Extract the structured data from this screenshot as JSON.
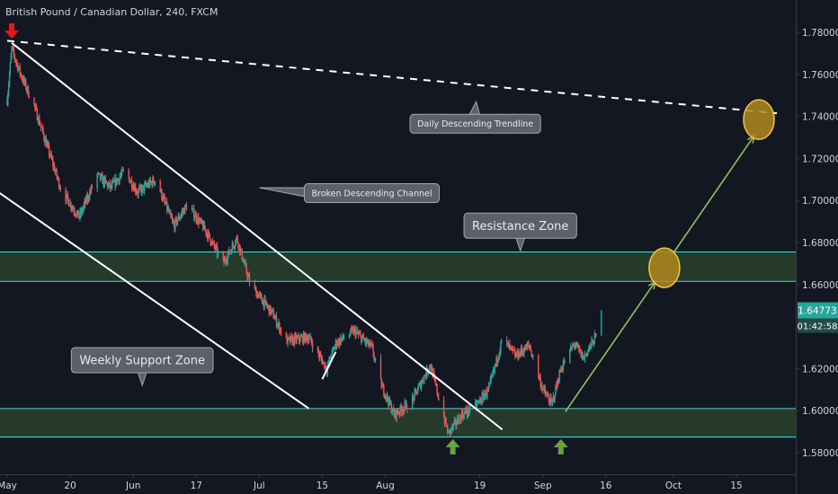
{
  "header": {
    "title": "British Pound / Canadian Dollar, 240, FXCM"
  },
  "price_tag": {
    "value": "1.64773",
    "countdown": "01:42:58"
  },
  "chart_data": {
    "type": "candlestick",
    "y_axis": {
      "ylim": [
        1.5705,
        1.795
      ],
      "ticks": [
        "1.78000",
        "1.76000",
        "1.74000",
        "1.72000",
        "1.70000",
        "1.68000",
        "1.66000",
        "1.64000",
        "1.62000",
        "1.60000",
        "1.58000"
      ],
      "position": "right"
    },
    "x_axis": {
      "ticks": [
        "May",
        "20",
        "Jun",
        "17",
        "Jul",
        "15",
        "Aug",
        "19",
        "Sep",
        "16",
        "Oct",
        "15"
      ],
      "tick_dates": [
        "2019-05-06",
        "2019-05-20",
        "2019-06-03",
        "2019-06-17",
        "2019-07-01",
        "2019-07-15",
        "2019-07-29",
        "2019-08-19",
        "2019-09-02",
        "2019-09-16",
        "2019-10-01",
        "2019-10-15"
      ]
    },
    "price_path": [
      [
        "2019-05-06",
        1.748
      ],
      [
        "2019-05-07",
        1.772
      ],
      [
        "2019-05-09",
        1.76
      ],
      [
        "2019-05-12",
        1.745
      ],
      [
        "2019-05-15",
        1.725
      ],
      [
        "2019-05-18",
        1.705
      ],
      [
        "2019-05-22",
        1.692
      ],
      [
        "2019-05-26",
        1.712
      ],
      [
        "2019-05-29",
        1.706
      ],
      [
        "2019-06-01",
        1.714
      ],
      [
        "2019-06-04",
        1.704
      ],
      [
        "2019-06-08",
        1.71
      ],
      [
        "2019-06-12",
        1.688
      ],
      [
        "2019-06-15",
        1.698
      ],
      [
        "2019-06-19",
        1.686
      ],
      [
        "2019-06-23",
        1.67
      ],
      [
        "2019-06-26",
        1.682
      ],
      [
        "2019-06-29",
        1.66
      ],
      [
        "2019-07-04",
        1.646
      ],
      [
        "2019-07-07",
        1.633
      ],
      [
        "2019-07-12",
        1.635
      ],
      [
        "2019-07-16",
        1.62
      ],
      [
        "2019-07-18",
        1.632
      ],
      [
        "2019-07-22",
        1.638
      ],
      [
        "2019-07-26",
        1.63
      ],
      [
        "2019-07-28",
        1.613
      ],
      [
        "2019-07-31",
        1.598
      ],
      [
        "2019-08-04",
        1.605
      ],
      [
        "2019-08-08",
        1.622
      ],
      [
        "2019-08-10",
        1.605
      ],
      [
        "2019-08-12",
        1.589
      ],
      [
        "2019-08-15",
        1.598
      ],
      [
        "2019-08-18",
        1.602
      ],
      [
        "2019-08-21",
        1.61
      ],
      [
        "2019-08-24",
        1.634
      ],
      [
        "2019-08-27",
        1.626
      ],
      [
        "2019-08-30",
        1.631
      ],
      [
        "2019-09-02",
        1.61
      ],
      [
        "2019-09-04",
        1.603
      ],
      [
        "2019-09-06",
        1.62
      ],
      [
        "2019-09-09",
        1.632
      ],
      [
        "2019-09-11",
        1.625
      ],
      [
        "2019-09-14",
        1.636
      ],
      [
        "2019-09-15",
        1.6477
      ]
    ],
    "zones": [
      {
        "name": "Resistance Zone",
        "low": 1.6615,
        "high": 1.6755
      },
      {
        "name": "Weekly Support Zone",
        "low": 1.5875,
        "high": 1.601
      }
    ],
    "lines": [
      {
        "name": "Daily Descending Trendline",
        "style": "dashed",
        "from": [
          "2019-05-06",
          1.776
        ],
        "to": [
          "2019-10-24",
          1.7415
        ]
      },
      {
        "name": "channel-upper",
        "style": "solid",
        "from": [
          "2019-05-07",
          1.775
        ],
        "to": [
          "2019-08-24",
          1.591
        ]
      },
      {
        "name": "channel-lower",
        "style": "solid",
        "from": [
          "2019-04-30",
          1.71
        ],
        "to": [
          "2019-07-12",
          1.601
        ]
      },
      {
        "name": "swing-mark",
        "style": "solid",
        "from": [
          "2019-07-15",
          1.615
        ],
        "to": [
          "2019-07-18",
          1.628
        ]
      }
    ],
    "arrows": [
      {
        "from": [
          "2019-09-07",
          1.5995
        ],
        "to": [
          "2019-09-27",
          1.6615
        ]
      },
      {
        "from": [
          "2019-10-01",
          1.675
        ],
        "to": [
          "2019-10-19",
          1.731
        ]
      }
    ],
    "targets": [
      {
        "date": "2019-09-29",
        "price": 1.668
      },
      {
        "date": "2019-10-20",
        "price": 1.7385
      }
    ],
    "markers": [
      {
        "type": "down",
        "color": "#e0191b",
        "date": "2019-05-07",
        "price": 1.78
      },
      {
        "type": "up",
        "color": "#67a53a",
        "date": "2019-08-13",
        "price": 1.583
      },
      {
        "type": "up",
        "color": "#67a53a",
        "date": "2019-09-06",
        "price": 1.583
      }
    ],
    "annotations": [
      {
        "text": "Daily Descending Trendline",
        "size": "small",
        "date": "2019-08-18",
        "price": 1.7365,
        "pointer": "up"
      },
      {
        "text": "Broken Descending Channel",
        "size": "small",
        "date": "2019-07-26",
        "price": 1.7035,
        "pointer": "left"
      },
      {
        "text": "Resistance Zone",
        "size": "large",
        "date": "2019-08-28",
        "price": 1.688,
        "pointer": "down"
      },
      {
        "text": "Weekly Support Zone",
        "size": "large",
        "date": "2019-06-05",
        "price": 1.624,
        "pointer": "down"
      }
    ],
    "colors": {
      "up": "#26a69a",
      "down": "#ef5350",
      "zone_fill": "#29412d",
      "zone_border": "#50d4c9",
      "arrow": "#93c25a",
      "target_fill": "#b08a1e",
      "target_stroke": "#f5c542",
      "label_bg": "#5d606b",
      "label_border": "#a3a6af",
      "label_text": "#e8e9ec",
      "axis_text": "#d1d4dc",
      "axis_line": "#363a45",
      "price_tag": "#26a69a"
    },
    "grid": false
  }
}
